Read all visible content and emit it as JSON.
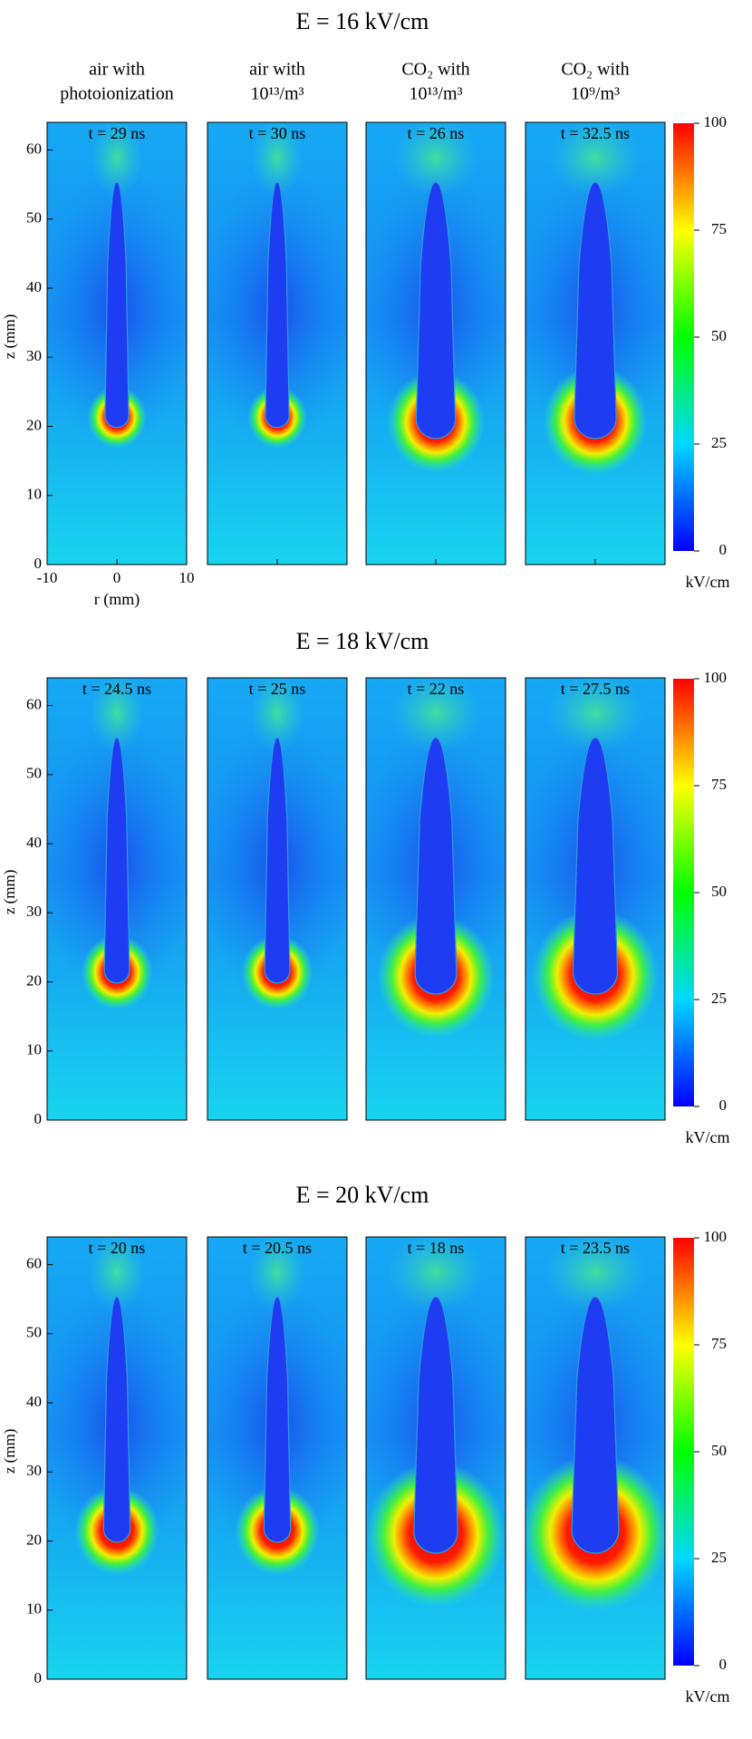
{
  "chart_data": [
    {
      "type": "heatmap",
      "title": "E = 16 kV/cm",
      "columns": [
        [
          "air with",
          "photoionization"
        ],
        [
          "air with",
          "10¹³/m³"
        ],
        [
          "CO₂ with",
          "10¹³/m³"
        ],
        [
          "CO₂ with",
          "10⁹/m³"
        ]
      ],
      "panels": [
        "t = 29 ns",
        "t = 30 ns",
        "t = 26 ns",
        "t = 32.5 ns"
      ],
      "ylabel": "z (mm)",
      "ylim": [
        0,
        64
      ],
      "yticks": [
        0,
        10,
        20,
        30,
        40,
        50,
        60
      ],
      "xlabel": "r (mm)",
      "xlim": [
        -10,
        10
      ],
      "xticks": [
        -10,
        0,
        10
      ],
      "colorbar_label": "kV/cm",
      "clim": [
        0,
        100
      ],
      "cticks": [
        0,
        25,
        50,
        75,
        100
      ]
    },
    {
      "type": "heatmap",
      "title": "E = 18 kV/cm",
      "panels": [
        "t = 24.5 ns",
        "t = 25 ns",
        "t = 22 ns",
        "t = 27.5 ns"
      ],
      "ylabel": "z (mm)",
      "ylim": [
        0,
        64
      ],
      "yticks": [
        0,
        10,
        20,
        30,
        40,
        50,
        60
      ],
      "colorbar_label": "kV/cm",
      "clim": [
        0,
        100
      ],
      "cticks": [
        0,
        25,
        50,
        75,
        100
      ]
    },
    {
      "type": "heatmap",
      "title": "E = 20 kV/cm",
      "panels": [
        "t = 20 ns",
        "t = 20.5 ns",
        "t = 18 ns",
        "t = 23.5 ns"
      ],
      "ylabel": "z (mm)",
      "ylim": [
        0,
        64
      ],
      "yticks": [
        0,
        10,
        20,
        30,
        40,
        50,
        60
      ],
      "colorbar_label": "kV/cm",
      "clim": [
        0,
        100
      ],
      "cticks": [
        0,
        25,
        50,
        75,
        100
      ]
    }
  ]
}
